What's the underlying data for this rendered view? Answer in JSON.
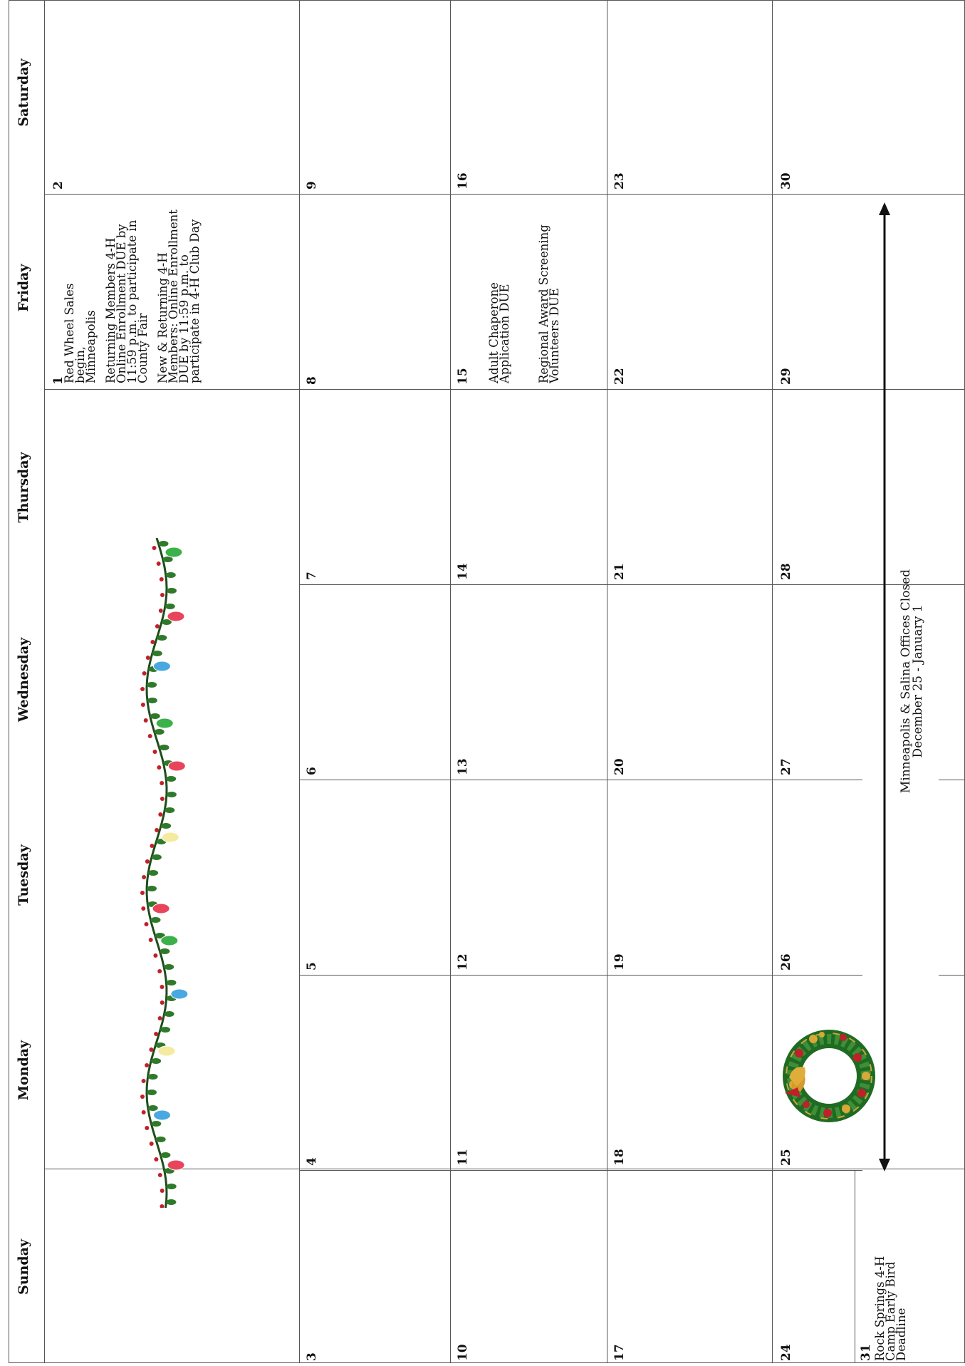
{
  "days": {
    "sunday": "Sunday",
    "monday": "Monday",
    "tuesday": "Tuesday",
    "wednesday": "Wednesday",
    "thursday": "Thursday",
    "friday": "Friday",
    "saturday": "Saturday"
  },
  "dates": {
    "d1": "1",
    "d2": "2",
    "d3": "3",
    "d4": "4",
    "d5": "5",
    "d6": "6",
    "d7": "7",
    "d8": "8",
    "d9": "9",
    "d10": "10",
    "d11": "11",
    "d12": "12",
    "d13": "13",
    "d14": "14",
    "d15": "15",
    "d16": "16",
    "d17": "17",
    "d18": "18",
    "d19": "19",
    "d20": "20",
    "d21": "21",
    "d22": "22",
    "d23": "23",
    "d24": "24",
    "d25": "25",
    "d26": "26",
    "d27": "27",
    "d28": "28",
    "d29": "29",
    "d30": "30",
    "d31": "31"
  },
  "events": {
    "fri1_a": "Red Wheel Sales begin, Minneapolis",
    "fri1_b": "Returning Members 4-H Online Enrollment DUE by 11:59 p.m. to participate in County Fair",
    "fri1_c": "New & Returning 4-H Members: Online Enrollment DUE by 11:59 p.m. to participate in 4-H Club Day",
    "fri15_a": "Adult Chaperone Application DUE",
    "fri15_b": "Regional Award Screening Volunteers DUE",
    "sun31": "Rock Springs 4-H Camp Early Bird Deadline",
    "closed_line1": "Minneapolis & Salina Offices Closed",
    "closed_line2": "December 25 - January 1"
  },
  "decorations": {
    "garland": "string-lights-garland-icon",
    "wreath": "christmas-wreath-icon",
    "bulb_colors": [
      "#e8455c",
      "#f4eba0",
      "#4aa8e0",
      "#3cb04a"
    ],
    "leaf_color": "#2f7a2a",
    "berry_color": "#c0202a"
  }
}
